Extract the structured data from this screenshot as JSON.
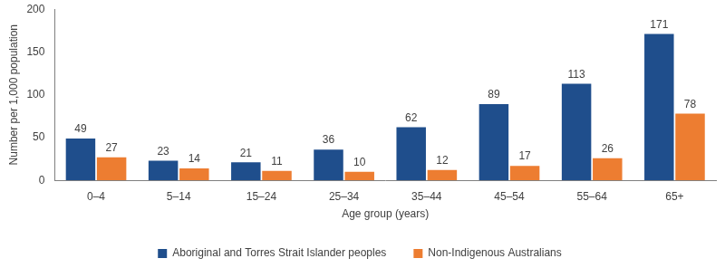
{
  "chart_data": {
    "type": "bar",
    "categories": [
      "0–4",
      "5–14",
      "15–24",
      "25–34",
      "35–44",
      "45–54",
      "55–64",
      "65+"
    ],
    "series": [
      {
        "name": "Aboriginal and Torres Strait Islander peoples",
        "color": "#1f4e8c",
        "values": [
          49,
          23,
          21,
          36,
          62,
          89,
          113,
          171
        ]
      },
      {
        "name": "Non-Indigenous Australians",
        "color": "#ed7d31",
        "values": [
          27,
          14,
          11,
          10,
          12,
          17,
          26,
          78
        ]
      }
    ],
    "x_label": "Age group (years)",
    "y_label": "Number per 1,000 population",
    "ylim": [
      0,
      200
    ],
    "yticks": [
      0,
      50,
      100,
      150,
      200
    ],
    "grid": false,
    "legend": "bottom",
    "data_labels": true
  }
}
